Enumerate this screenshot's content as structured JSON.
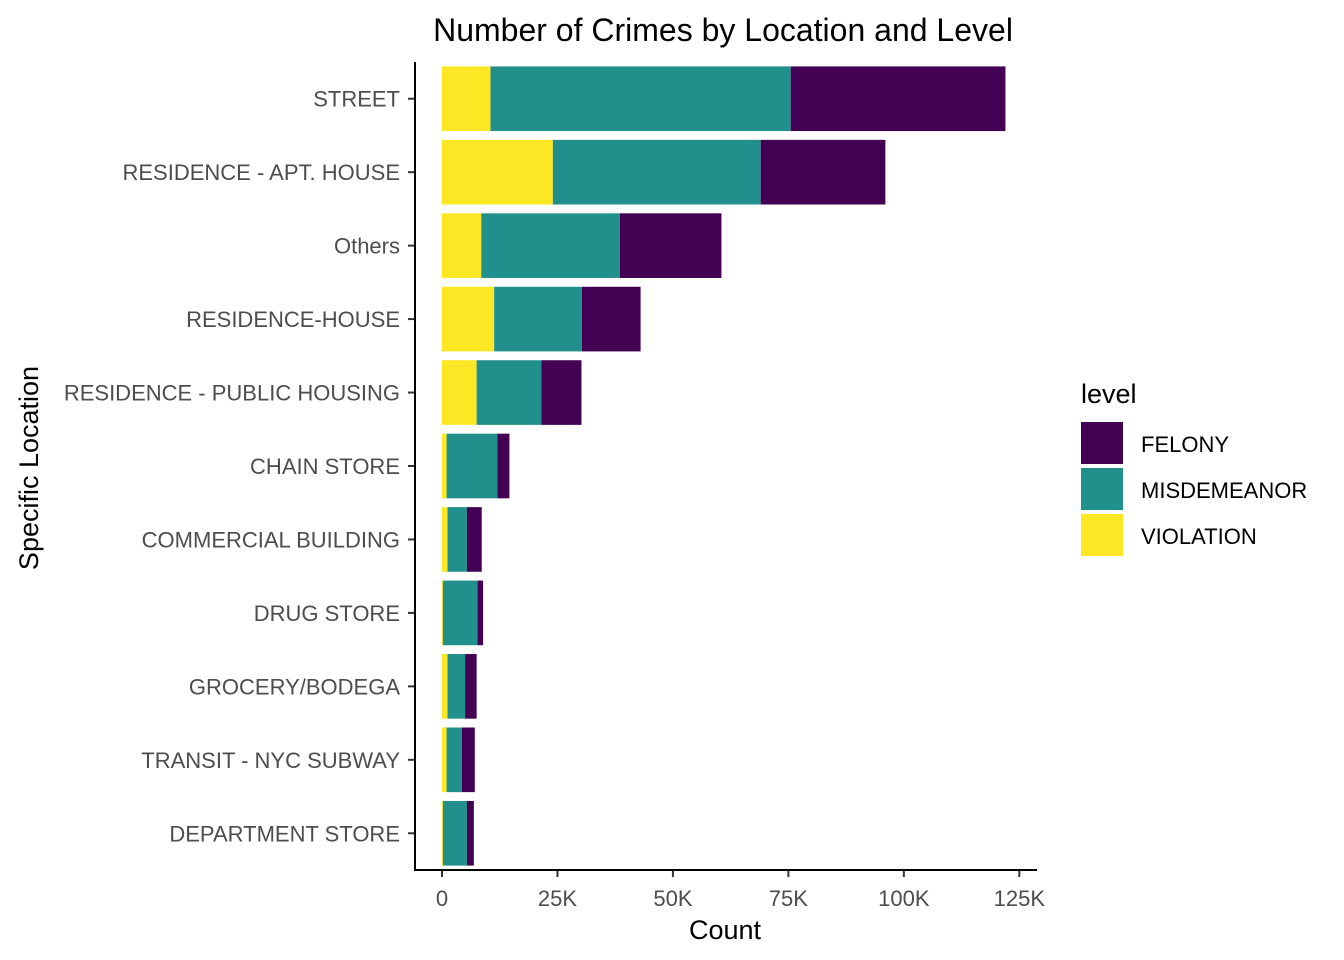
{
  "chart_data": {
    "type": "bar",
    "orientation": "horizontal",
    "stacked": true,
    "title": "Number of Crimes by Location and Level",
    "xlabel": "Count",
    "ylabel": "Specific Location",
    "xlim": [
      0,
      128000
    ],
    "x_ticks": [
      0,
      25000,
      50000,
      75000,
      100000,
      125000
    ],
    "x_tick_labels": [
      "0",
      "25K",
      "50K",
      "75K",
      "100K",
      "125K"
    ],
    "grid": false,
    "legend_position": "right",
    "legend_title": "level",
    "categories": [
      "STREET",
      "RESIDENCE - APT. HOUSE",
      "Others",
      "RESIDENCE-HOUSE",
      "RESIDENCE - PUBLIC HOUSING",
      "CHAIN STORE",
      "COMMERCIAL BUILDING",
      "DRUG STORE",
      "GROCERY/BODEGA",
      "TRANSIT - NYC SUBWAY",
      "DEPARTMENT STORE"
    ],
    "series": [
      {
        "name": "FELONY",
        "color": "#440154",
        "values": [
          46500,
          27000,
          22000,
          12700,
          8700,
          2600,
          3200,
          1200,
          2500,
          2800,
          1500
        ]
      },
      {
        "name": "MISDEMEANOR",
        "color": "#21908c",
        "values": [
          65000,
          45000,
          30000,
          19000,
          14000,
          11000,
          4200,
          7500,
          3800,
          3300,
          5200
        ]
      },
      {
        "name": "VIOLATION",
        "color": "#fde725",
        "values": [
          10500,
          24000,
          8500,
          11300,
          7500,
          1000,
          1200,
          200,
          1200,
          1000,
          200
        ]
      }
    ]
  }
}
